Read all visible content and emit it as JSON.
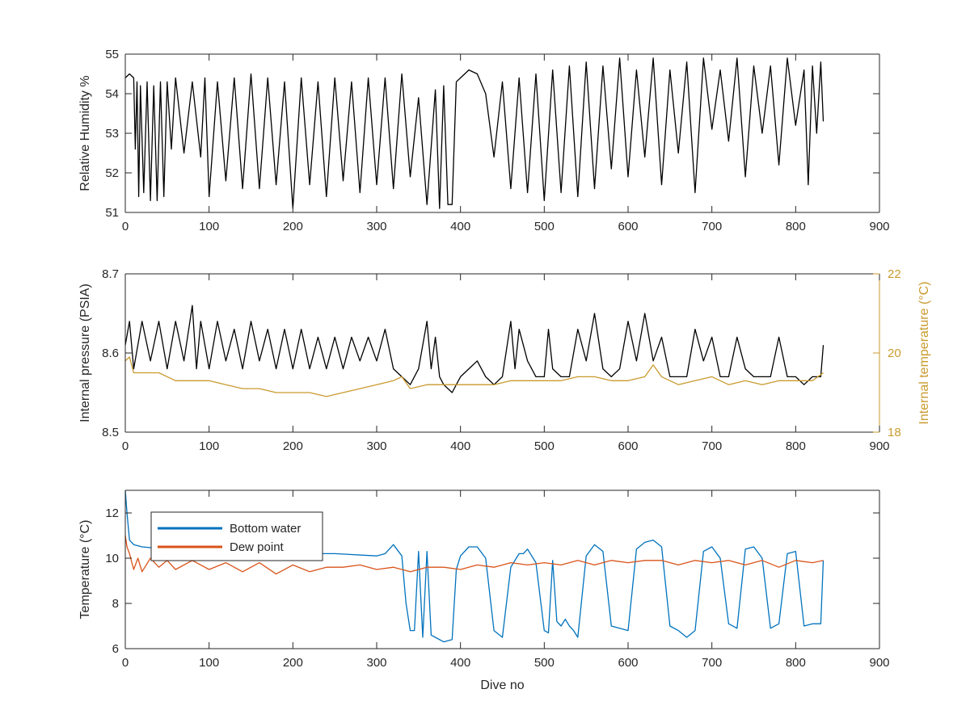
{
  "chart_data": [
    {
      "type": "line",
      "xlabel": "",
      "ylabel": "Relative Humidity %",
      "xlim": [
        0,
        900
      ],
      "ylim": [
        51,
        55
      ],
      "xticks": [
        0,
        100,
        200,
        300,
        400,
        500,
        600,
        700,
        800,
        900
      ],
      "yticks": [
        51,
        52,
        53,
        54,
        55
      ],
      "grid": false,
      "series": [
        {
          "name": "",
          "color": "#000000",
          "axis": "left",
          "x": [
            0,
            5,
            10,
            12,
            14,
            16,
            18,
            22,
            26,
            30,
            34,
            38,
            42,
            46,
            50,
            55,
            60,
            70,
            80,
            90,
            95,
            100,
            110,
            120,
            130,
            140,
            150,
            160,
            170,
            180,
            190,
            200,
            210,
            220,
            230,
            240,
            250,
            260,
            270,
            280,
            290,
            300,
            310,
            320,
            330,
            340,
            350,
            360,
            370,
            375,
            380,
            385,
            390,
            395,
            400,
            405,
            410,
            420,
            430,
            440,
            450,
            460,
            470,
            480,
            490,
            500,
            510,
            520,
            530,
            540,
            550,
            560,
            570,
            580,
            590,
            600,
            610,
            620,
            630,
            640,
            650,
            660,
            670,
            680,
            690,
            700,
            710,
            720,
            730,
            740,
            750,
            760,
            770,
            780,
            790,
            800,
            810,
            815,
            820,
            825,
            830,
            833
          ],
          "y": [
            54.4,
            54.5,
            54.4,
            52.6,
            54.3,
            51.4,
            54.2,
            51.5,
            54.3,
            51.3,
            54.2,
            51.3,
            54.3,
            51.4,
            54.3,
            52.6,
            54.4,
            52.5,
            54.3,
            52.4,
            54.4,
            51.4,
            54.3,
            51.8,
            54.4,
            51.6,
            54.5,
            51.6,
            54.4,
            51.7,
            54.3,
            51.1,
            54.4,
            51.7,
            54.3,
            51.4,
            54.4,
            51.8,
            54.3,
            51.5,
            54.4,
            51.7,
            54.4,
            51.6,
            54.5,
            51.9,
            53.9,
            51.2,
            54.1,
            51.1,
            54.2,
            51.2,
            51.2,
            54.3,
            54.4,
            54.5,
            54.6,
            54.5,
            54.0,
            52.4,
            54.3,
            51.6,
            54.4,
            51.5,
            54.5,
            51.3,
            54.6,
            51.5,
            54.7,
            51.4,
            54.8,
            51.6,
            54.7,
            52.1,
            54.9,
            51.9,
            54.6,
            52.4,
            54.9,
            51.7,
            54.6,
            52.5,
            54.8,
            51.5,
            54.9,
            53.1,
            54.6,
            52.8,
            54.9,
            51.9,
            54.7,
            53.0,
            54.7,
            52.2,
            54.9,
            53.2,
            54.6,
            51.7,
            54.7,
            53.0,
            54.8,
            53.3
          ]
        }
      ]
    },
    {
      "type": "line",
      "xlabel": "",
      "ylabel": "Internal pressure (PSIA)",
      "ylabel_right": "Internal temperature (°C)",
      "xlim": [
        0,
        900
      ],
      "ylim": [
        8.5,
        8.7
      ],
      "ylim_right": [
        18,
        22
      ],
      "xticks": [
        0,
        100,
        200,
        300,
        400,
        500,
        600,
        700,
        800,
        900
      ],
      "yticks": [
        8.5,
        8.6,
        8.7
      ],
      "yticks_right": [
        18,
        20,
        22
      ],
      "right_axis_color": "#C99A2E",
      "grid": false,
      "series": [
        {
          "name": "",
          "color": "#000000",
          "axis": "left",
          "x": [
            0,
            5,
            10,
            20,
            30,
            40,
            50,
            60,
            70,
            80,
            85,
            90,
            100,
            110,
            120,
            130,
            140,
            150,
            160,
            170,
            180,
            190,
            200,
            210,
            220,
            230,
            240,
            250,
            260,
            270,
            280,
            290,
            300,
            310,
            320,
            330,
            340,
            350,
            360,
            365,
            370,
            375,
            380,
            390,
            400,
            410,
            420,
            430,
            440,
            450,
            460,
            465,
            470,
            480,
            490,
            500,
            505,
            510,
            520,
            530,
            540,
            550,
            560,
            570,
            580,
            590,
            600,
            610,
            620,
            630,
            640,
            650,
            660,
            670,
            680,
            690,
            700,
            710,
            720,
            730,
            740,
            750,
            760,
            770,
            780,
            790,
            800,
            810,
            820,
            830,
            833
          ],
          "y": [
            8.61,
            8.64,
            8.58,
            8.64,
            8.59,
            8.64,
            8.58,
            8.64,
            8.59,
            8.66,
            8.58,
            8.64,
            8.58,
            8.64,
            8.59,
            8.63,
            8.58,
            8.64,
            8.59,
            8.63,
            8.58,
            8.63,
            8.58,
            8.63,
            8.58,
            8.62,
            8.58,
            8.62,
            8.58,
            8.62,
            8.59,
            8.62,
            8.59,
            8.63,
            8.58,
            8.57,
            8.56,
            8.58,
            8.64,
            8.58,
            8.62,
            8.57,
            8.56,
            8.55,
            8.57,
            8.58,
            8.59,
            8.57,
            8.56,
            8.57,
            8.64,
            8.58,
            8.63,
            8.59,
            8.57,
            8.57,
            8.63,
            8.58,
            8.57,
            8.57,
            8.63,
            8.59,
            8.65,
            8.58,
            8.57,
            8.58,
            8.64,
            8.59,
            8.65,
            8.59,
            8.62,
            8.57,
            8.57,
            8.57,
            8.63,
            8.59,
            8.62,
            8.57,
            8.57,
            8.62,
            8.58,
            8.57,
            8.57,
            8.57,
            8.62,
            8.57,
            8.57,
            8.56,
            8.57,
            8.57,
            8.61
          ]
        },
        {
          "name": "",
          "color": "#C99A2E",
          "axis": "right",
          "x": [
            0,
            5,
            10,
            20,
            40,
            60,
            80,
            100,
            120,
            140,
            160,
            180,
            200,
            220,
            240,
            260,
            280,
            300,
            320,
            330,
            340,
            360,
            380,
            400,
            420,
            440,
            460,
            480,
            500,
            520,
            540,
            560,
            580,
            600,
            620,
            630,
            640,
            660,
            680,
            700,
            720,
            740,
            760,
            780,
            800,
            820,
            833
          ],
          "y": [
            19.8,
            19.9,
            19.5,
            19.5,
            19.5,
            19.3,
            19.3,
            19.3,
            19.2,
            19.1,
            19.1,
            19.0,
            19.0,
            19.0,
            18.9,
            19.0,
            19.1,
            19.2,
            19.3,
            19.4,
            19.1,
            19.2,
            19.2,
            19.2,
            19.2,
            19.2,
            19.3,
            19.3,
            19.3,
            19.3,
            19.4,
            19.4,
            19.3,
            19.3,
            19.4,
            19.7,
            19.4,
            19.2,
            19.3,
            19.4,
            19.2,
            19.3,
            19.2,
            19.3,
            19.3,
            19.3,
            19.5
          ]
        }
      ]
    },
    {
      "type": "line",
      "xlabel": "Dive no",
      "ylabel": "Temperature (°C)",
      "xlim": [
        0,
        900
      ],
      "ylim": [
        6,
        13
      ],
      "xticks": [
        0,
        100,
        200,
        300,
        400,
        500,
        600,
        700,
        800,
        900
      ],
      "yticks": [
        6,
        8,
        10,
        12
      ],
      "grid": false,
      "legend": "top-left",
      "series": [
        {
          "name": "Bottom water",
          "color": "#0072BD",
          "axis": "left",
          "x": [
            0,
            2,
            5,
            10,
            20,
            50,
            100,
            150,
            200,
            250,
            300,
            310,
            320,
            330,
            335,
            340,
            345,
            350,
            355,
            360,
            365,
            370,
            380,
            390,
            395,
            400,
            410,
            420,
            430,
            440,
            450,
            460,
            470,
            475,
            480,
            490,
            500,
            505,
            510,
            515,
            520,
            525,
            530,
            535,
            540,
            550,
            560,
            570,
            580,
            590,
            600,
            610,
            620,
            630,
            640,
            650,
            660,
            670,
            680,
            690,
            700,
            710,
            720,
            730,
            740,
            750,
            760,
            770,
            780,
            790,
            800,
            810,
            820,
            830,
            833
          ],
          "y": [
            13.0,
            12.0,
            10.8,
            10.6,
            10.5,
            10.4,
            10.3,
            10.3,
            10.2,
            10.2,
            10.1,
            10.2,
            10.6,
            10.1,
            8.0,
            6.8,
            6.8,
            10.3,
            6.5,
            10.3,
            6.6,
            6.5,
            6.3,
            6.4,
            9.5,
            10.1,
            10.5,
            10.5,
            10.0,
            6.8,
            6.5,
            9.6,
            10.2,
            10.2,
            10.4,
            9.8,
            6.8,
            6.7,
            9.9,
            7.2,
            7.0,
            7.3,
            7.0,
            6.8,
            6.5,
            10.1,
            10.6,
            10.3,
            7.0,
            6.9,
            6.8,
            10.4,
            10.7,
            10.8,
            10.5,
            7.0,
            6.8,
            6.5,
            6.8,
            10.3,
            10.5,
            10.0,
            7.1,
            6.9,
            10.4,
            10.5,
            10.0,
            6.9,
            7.1,
            10.2,
            10.3,
            7.0,
            7.1,
            7.1,
            9.9
          ]
        },
        {
          "name": "Dew point",
          "color": "#D95319",
          "axis": "left",
          "x": [
            0,
            2,
            5,
            10,
            15,
            20,
            30,
            40,
            50,
            60,
            80,
            100,
            120,
            140,
            160,
            180,
            200,
            220,
            240,
            260,
            280,
            300,
            320,
            340,
            360,
            380,
            400,
            420,
            440,
            460,
            480,
            500,
            520,
            540,
            560,
            580,
            600,
            620,
            640,
            660,
            680,
            700,
            720,
            740,
            760,
            780,
            800,
            820,
            833
          ],
          "y": [
            11.0,
            10.5,
            10.2,
            9.5,
            10.0,
            9.4,
            10.0,
            9.6,
            9.9,
            9.5,
            9.9,
            9.5,
            9.8,
            9.4,
            9.8,
            9.3,
            9.7,
            9.4,
            9.6,
            9.6,
            9.7,
            9.5,
            9.6,
            9.4,
            9.6,
            9.6,
            9.5,
            9.7,
            9.6,
            9.8,
            9.7,
            9.8,
            9.7,
            9.9,
            9.7,
            9.9,
            9.8,
            9.9,
            9.9,
            9.7,
            9.9,
            9.8,
            9.9,
            9.7,
            9.9,
            9.6,
            9.9,
            9.8,
            9.9
          ]
        }
      ]
    }
  ]
}
